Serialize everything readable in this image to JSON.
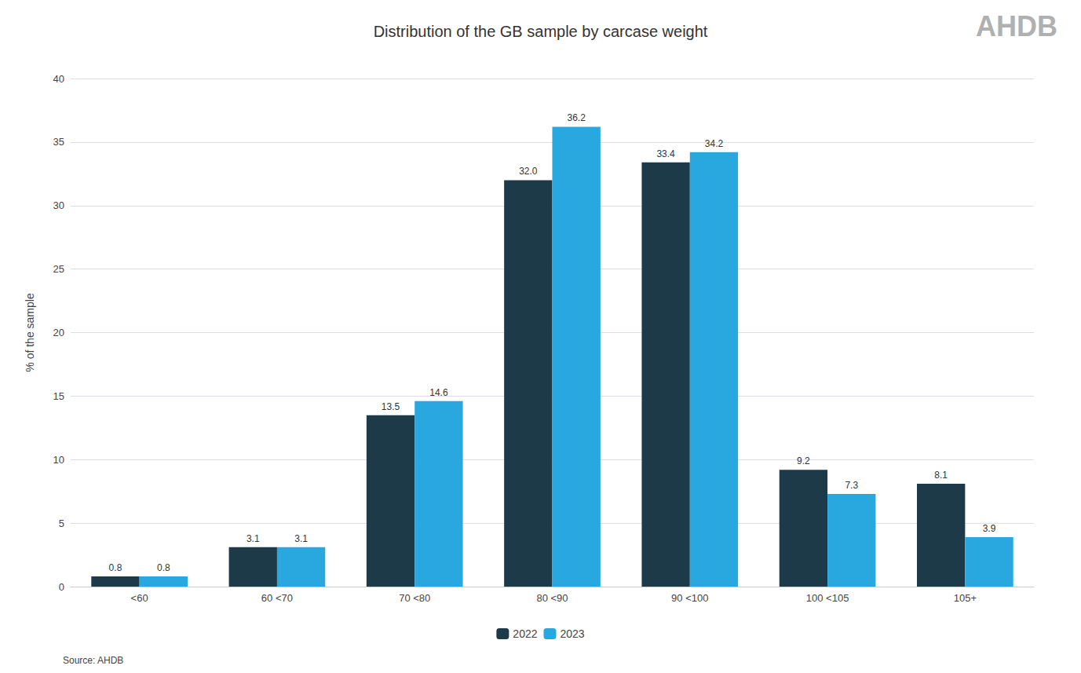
{
  "chart_data": {
    "type": "bar",
    "title": "Distribution of the GB sample by carcase weight",
    "ylabel": "% of the sample",
    "source": "Source: AHDB",
    "annotations": [
      "AHDB"
    ],
    "categories": [
      "<60",
      "60 <70",
      "70 <80",
      "80 <90",
      "90 <100",
      "100 <105",
      "105+"
    ],
    "series": [
      {
        "name": "2022",
        "color": "#1c3a47",
        "values": [
          0.8,
          3.1,
          13.5,
          32.0,
          33.4,
          9.2,
          8.1
        ],
        "value_labels": [
          "0.8",
          "3.1",
          "13.5",
          "32.0",
          "33.4",
          "9.2",
          "8.1"
        ]
      },
      {
        "name": "2023",
        "color": "#29a8e0",
        "values": [
          0.8,
          3.1,
          14.6,
          36.2,
          34.2,
          7.3,
          3.9
        ],
        "value_labels": [
          "0.8",
          "3.1",
          "14.6",
          "36.2",
          "34.2",
          "7.3",
          "3.9"
        ]
      }
    ],
    "ylim": [
      0,
      40
    ],
    "yticks": [
      0,
      5,
      10,
      15,
      20,
      25,
      30,
      35,
      40
    ],
    "grid": true,
    "legend": "bottom",
    "data_labels": true
  }
}
